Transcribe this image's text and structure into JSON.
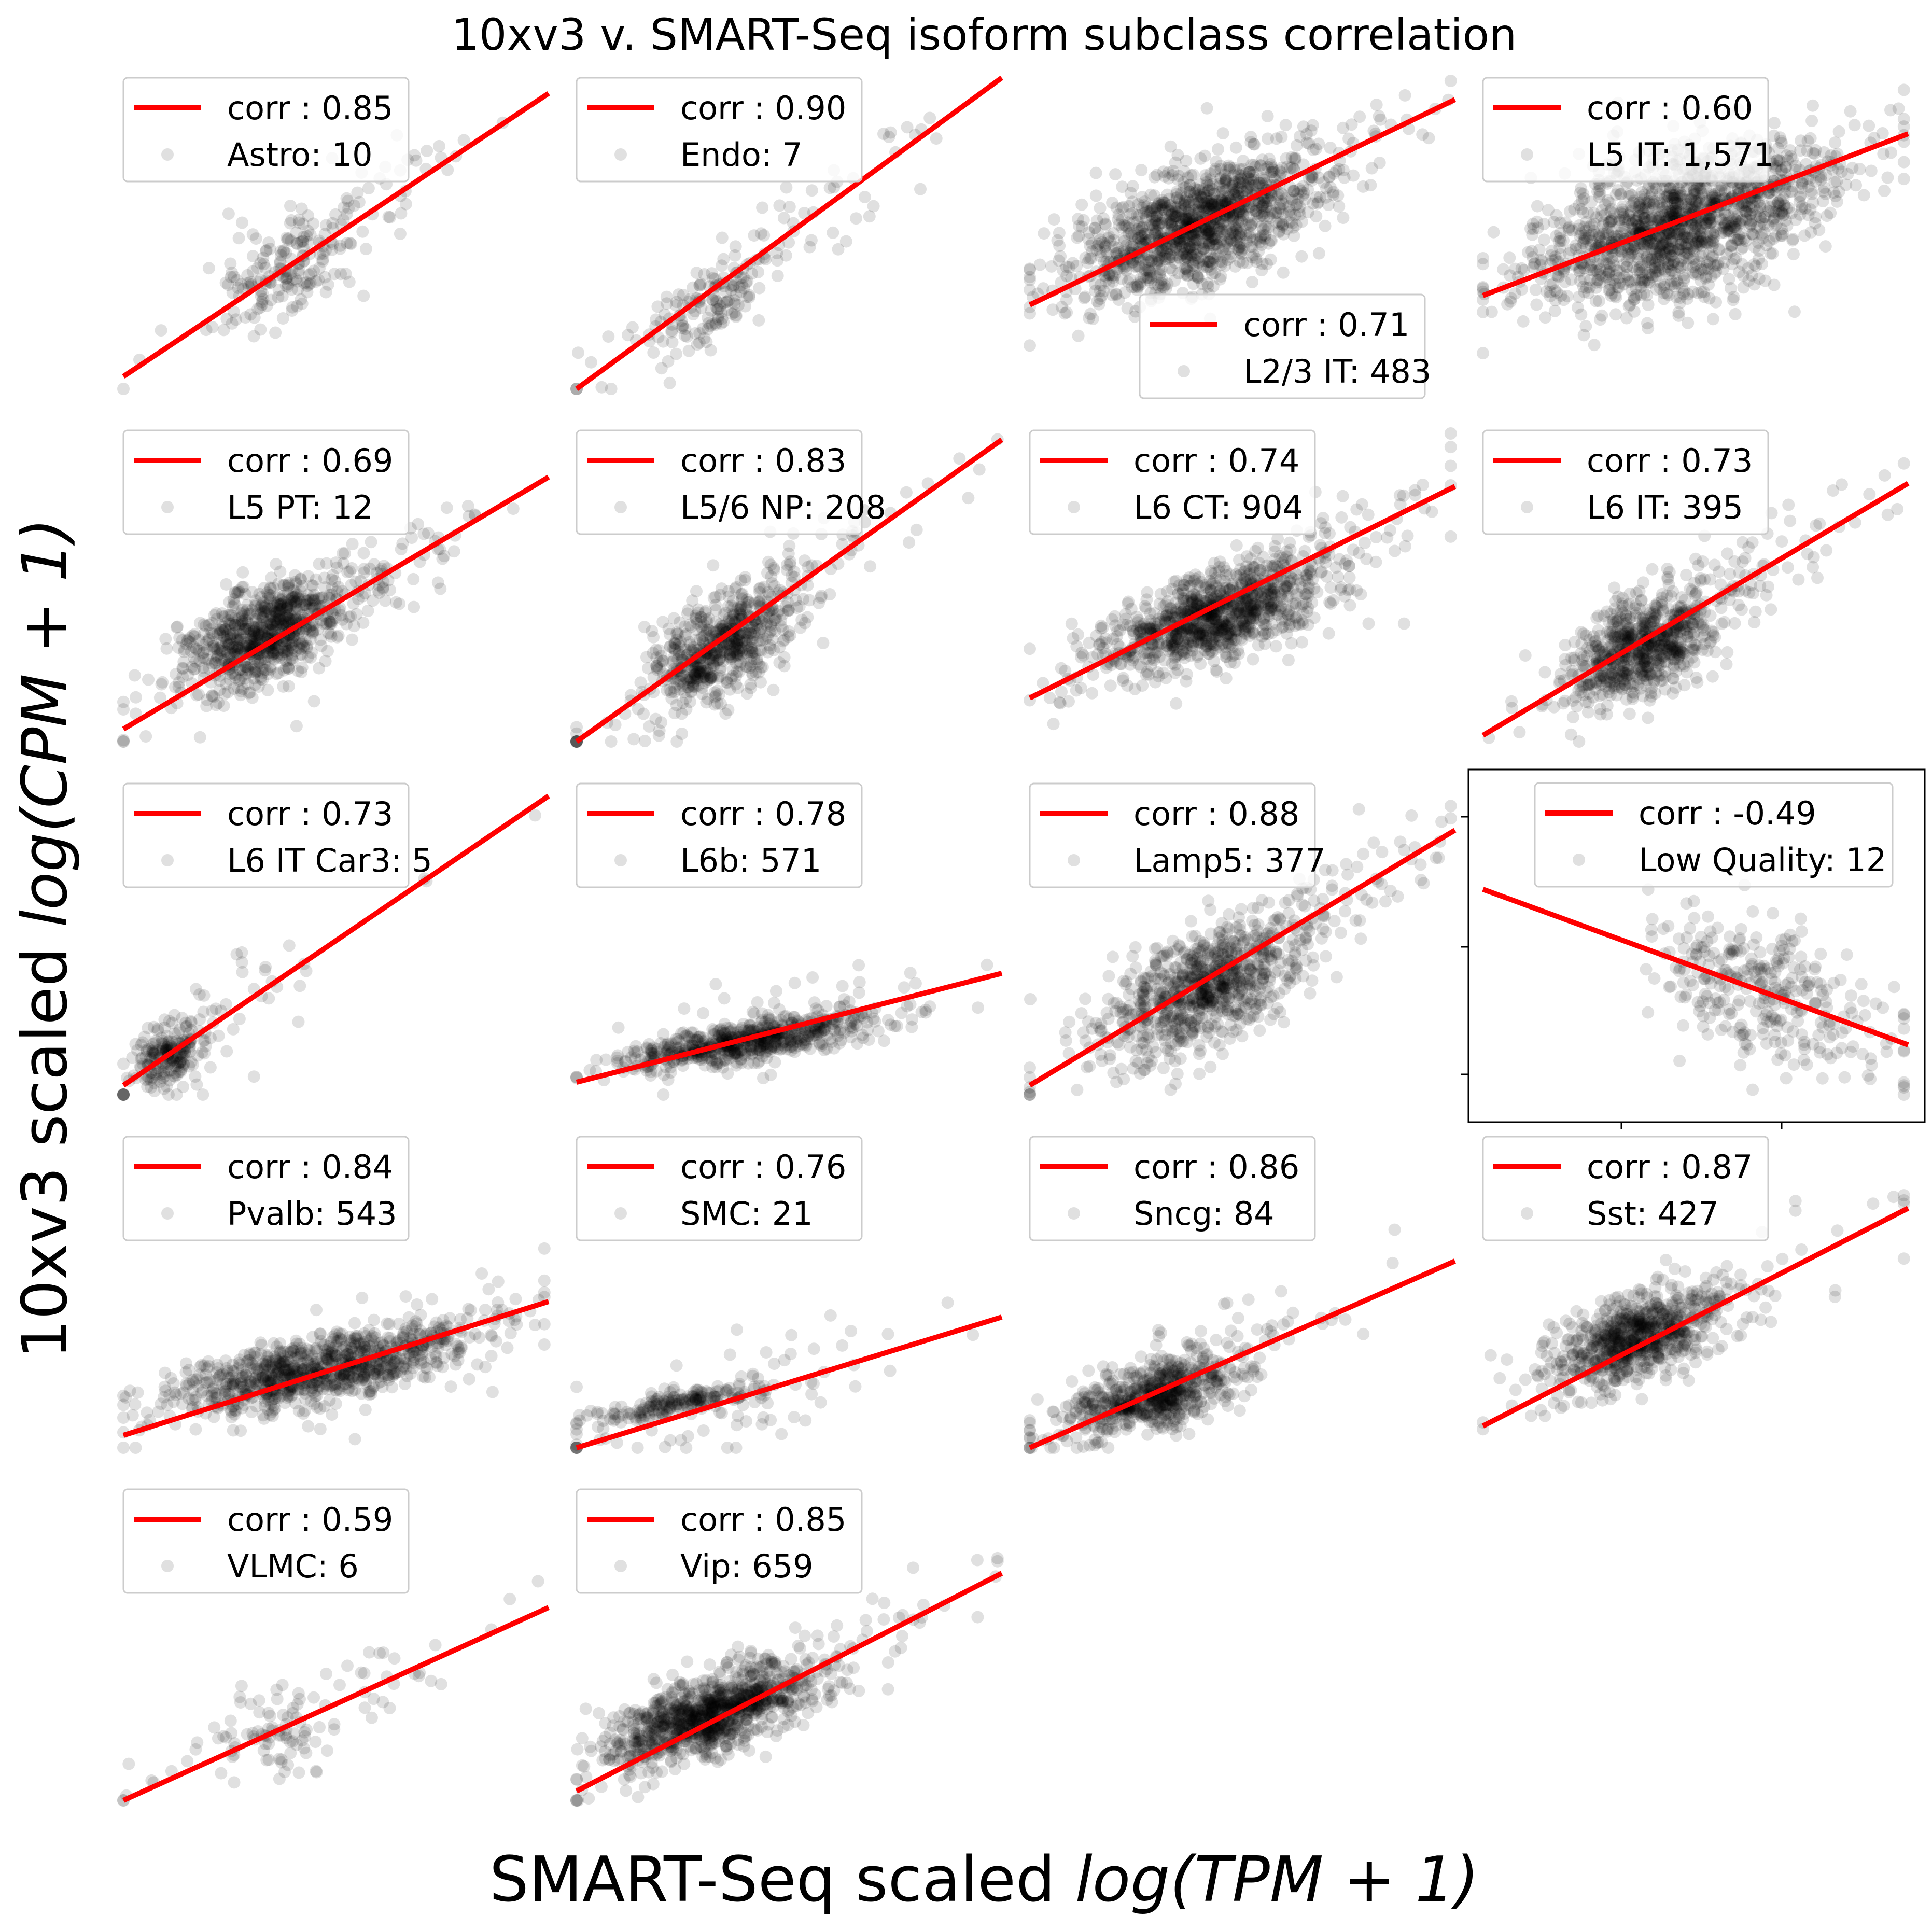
{
  "figure": {
    "title": "10xv3 v. SMART-Seq isoform subclass correlation",
    "xlabel": {
      "plain": "SMART-Seq scaled ",
      "math": "log(TPM + 1)"
    },
    "ylabel": {
      "plain": "10xv3 scaled ",
      "math": "log(CPM + 1)"
    },
    "colors": {
      "fit": "#ff0000",
      "points": "#000000",
      "frame": "#000000"
    },
    "point_alpha": 0.12
  },
  "chart_data": [
    {
      "type": "scatter",
      "label": "Astro: 10",
      "corr_label": "corr : 0.85",
      "corr": 0.85,
      "legend": "upper-left",
      "frame": false,
      "fit": [
        [
          0,
          0.04
        ],
        [
          1,
          0.95
        ]
      ],
      "cluster": {
        "cx": 0.38,
        "cy": 0.38,
        "sx": 0.08,
        "sy": 0.08,
        "n": 220,
        "tail": 0.35
      },
      "seed": 11
    },
    {
      "type": "scatter",
      "label": "Endo: 7",
      "corr_label": "corr : 0.90",
      "corr": 0.9,
      "legend": "upper-left",
      "frame": false,
      "fit": [
        [
          0,
          0.0
        ],
        [
          1,
          1.0
        ]
      ],
      "cluster": {
        "cx": 0.3,
        "cy": 0.25,
        "sx": 0.07,
        "sy": 0.05,
        "n": 200,
        "tail": 0.4
      },
      "seed": 12
    },
    {
      "type": "scatter",
      "label": "L2/3 IT: 483",
      "corr_label": "corr : 0.71",
      "corr": 0.71,
      "legend": "lower-right",
      "frame": false,
      "fit": [
        [
          0,
          0.27
        ],
        [
          1,
          0.93
        ]
      ],
      "cluster": {
        "cx": 0.38,
        "cy": 0.52,
        "sx": 0.14,
        "sy": 0.09,
        "n": 1300,
        "tail": 0.15
      },
      "seed": 13
    },
    {
      "type": "scatter",
      "label": "L5 IT: 1,571",
      "corr_label": "corr : 0.60",
      "corr": 0.6,
      "legend": "upper-left",
      "frame": false,
      "fit": [
        [
          0,
          0.3
        ],
        [
          1,
          0.82
        ]
      ],
      "cluster": {
        "cx": 0.45,
        "cy": 0.52,
        "sx": 0.16,
        "sy": 0.12,
        "n": 1500,
        "tail": 0.15
      },
      "seed": 14
    },
    {
      "type": "scatter",
      "label": "L5 PT: 12",
      "corr_label": "corr : 0.69",
      "corr": 0.69,
      "legend": "upper-left",
      "frame": false,
      "fit": [
        [
          0,
          0.04
        ],
        [
          1,
          0.85
        ]
      ],
      "cluster": {
        "cx": 0.33,
        "cy": 0.35,
        "sx": 0.09,
        "sy": 0.08,
        "n": 900,
        "tail": 0.15
      },
      "seed": 21
    },
    {
      "type": "scatter",
      "label": "L5/6 NP: 208",
      "corr_label": "corr : 0.83",
      "corr": 0.83,
      "legend": "upper-left",
      "frame": false,
      "fit": [
        [
          0,
          0.0
        ],
        [
          1,
          0.97
        ]
      ],
      "cluster": {
        "cx": 0.33,
        "cy": 0.3,
        "sx": 0.08,
        "sy": 0.08,
        "n": 700,
        "tail": 0.2
      },
      "seed": 22
    },
    {
      "type": "scatter",
      "label": "L6 CT: 904",
      "corr_label": "corr : 0.74",
      "corr": 0.74,
      "legend": "upper-left",
      "frame": false,
      "fit": [
        [
          0,
          0.14
        ],
        [
          1,
          0.82
        ]
      ],
      "cluster": {
        "cx": 0.43,
        "cy": 0.4,
        "sx": 0.13,
        "sy": 0.07,
        "n": 1100,
        "tail": 0.15
      },
      "seed": 23
    },
    {
      "type": "scatter",
      "label": "L6 IT: 395",
      "corr_label": "corr : 0.73",
      "corr": 0.73,
      "legend": "upper-left",
      "frame": false,
      "fit": [
        [
          0,
          0.02
        ],
        [
          1,
          0.83
        ]
      ],
      "cluster": {
        "cx": 0.37,
        "cy": 0.3,
        "sx": 0.09,
        "sy": 0.08,
        "n": 800,
        "tail": 0.15
      },
      "seed": 24
    },
    {
      "type": "scatter",
      "label": "L6 IT Car3: 5",
      "corr_label": "corr : 0.73",
      "corr": 0.73,
      "legend": "upper-left",
      "frame": false,
      "fit": [
        [
          0,
          0.03
        ],
        [
          1,
          0.96
        ]
      ],
      "cluster": {
        "cx": 0.1,
        "cy": 0.12,
        "sx": 0.04,
        "sy": 0.05,
        "n": 250,
        "tail": 0.25
      },
      "seed": 31
    },
    {
      "type": "scatter",
      "label": "L6b: 571",
      "corr_label": "corr : 0.78",
      "corr": 0.78,
      "legend": "upper-left",
      "frame": false,
      "fit": [
        [
          0,
          0.04
        ],
        [
          1,
          0.39
        ]
      ],
      "cluster": {
        "cx": 0.4,
        "cy": 0.17,
        "sx": 0.15,
        "sy": 0.03,
        "n": 700,
        "tail": 0.1
      },
      "seed": 32
    },
    {
      "type": "scatter",
      "label": "Lamp5: 377",
      "corr_label": "corr : 0.88",
      "corr": 0.88,
      "legend": "upper-left",
      "frame": false,
      "fit": [
        [
          0,
          0.03
        ],
        [
          1,
          0.85
        ]
      ],
      "cluster": {
        "cx": 0.4,
        "cy": 0.33,
        "sx": 0.12,
        "sy": 0.09,
        "n": 900,
        "tail": 0.2
      },
      "seed": 33
    },
    {
      "type": "scatter",
      "label": "Low Quality: 12",
      "corr_label": "corr : -0.49",
      "corr": -0.49,
      "legend": "upper-right",
      "frame": true,
      "fit": [
        [
          0,
          0.66
        ],
        [
          1,
          0.16
        ]
      ],
      "cluster": {
        "cx": 0.65,
        "cy": 0.32,
        "sx": 0.12,
        "sy": 0.12,
        "n": 320,
        "tail": 0.15
      },
      "seed": 34
    },
    {
      "type": "scatter",
      "label": "Pvalb: 543",
      "corr_label": "corr : 0.84",
      "corr": 0.84,
      "legend": "upper-left",
      "frame": false,
      "fit": [
        [
          0,
          0.04
        ],
        [
          1,
          0.47
        ]
      ],
      "cluster": {
        "cx": 0.45,
        "cy": 0.25,
        "sx": 0.18,
        "sy": 0.05,
        "n": 1000,
        "tail": 0.15
      },
      "seed": 41
    },
    {
      "type": "scatter",
      "label": "SMC: 21",
      "corr_label": "corr : 0.76",
      "corr": 0.76,
      "legend": "upper-left",
      "frame": false,
      "fit": [
        [
          0,
          0.0
        ],
        [
          1,
          0.42
        ]
      ],
      "cluster": {
        "cx": 0.22,
        "cy": 0.14,
        "sx": 0.09,
        "sy": 0.02,
        "n": 260,
        "tail": 0.3
      },
      "seed": 42
    },
    {
      "type": "scatter",
      "label": "Sncg: 84",
      "corr_label": "corr : 0.86",
      "corr": 0.86,
      "legend": "upper-left",
      "frame": false,
      "fit": [
        [
          0,
          0.0
        ],
        [
          1,
          0.6
        ]
      ],
      "cluster": {
        "cx": 0.28,
        "cy": 0.16,
        "sx": 0.1,
        "sy": 0.05,
        "n": 700,
        "tail": 0.2
      },
      "seed": 43
    },
    {
      "type": "scatter",
      "label": "Sst: 427",
      "corr_label": "corr : 0.87",
      "corr": 0.87,
      "legend": "upper-left",
      "frame": false,
      "fit": [
        [
          0,
          0.07
        ],
        [
          1,
          0.77
        ]
      ],
      "cluster": {
        "cx": 0.35,
        "cy": 0.35,
        "sx": 0.09,
        "sy": 0.07,
        "n": 800,
        "tail": 0.15
      },
      "seed": 44
    },
    {
      "type": "scatter",
      "label": "VLMC: 6",
      "corr_label": "corr : 0.59",
      "corr": 0.59,
      "legend": "upper-left",
      "frame": false,
      "fit": [
        [
          0,
          0.0
        ],
        [
          1,
          0.62
        ]
      ],
      "cluster": {
        "cx": 0.33,
        "cy": 0.22,
        "sx": 0.08,
        "sy": 0.07,
        "n": 120,
        "tail": 0.5
      },
      "seed": 51
    },
    {
      "type": "scatter",
      "label": "Vip: 659",
      "corr_label": "corr : 0.85",
      "corr": 0.85,
      "legend": "upper-left",
      "frame": false,
      "fit": [
        [
          0,
          0.03
        ],
        [
          1,
          0.73
        ]
      ],
      "cluster": {
        "cx": 0.3,
        "cy": 0.27,
        "sx": 0.11,
        "sy": 0.06,
        "n": 1100,
        "tail": 0.2
      },
      "seed": 52
    }
  ]
}
